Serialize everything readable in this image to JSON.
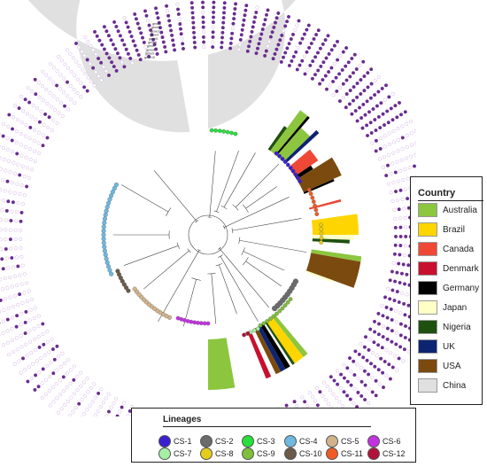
{
  "country_legend": {
    "title": "Country",
    "items": [
      {
        "label": "Australia",
        "color": "#8cc63f"
      },
      {
        "label": "Brazil",
        "color": "#ffd500"
      },
      {
        "label": "Canada",
        "color": "#ef4836"
      },
      {
        "label": "Denmark",
        "color": "#c8102e"
      },
      {
        "label": "Germany",
        "color": "#000000"
      },
      {
        "label": "Japan",
        "color": "#ffffc8"
      },
      {
        "label": "Nigeria",
        "color": "#1e5010"
      },
      {
        "label": "UK",
        "color": "#0d2472"
      },
      {
        "label": "USA",
        "color": "#7b4a0e"
      },
      {
        "label": "China",
        "color": "#e0e0e0"
      }
    ]
  },
  "lineage_legend": {
    "title": "Lineages",
    "items": [
      {
        "label": "CS-1",
        "color": "#3a1fd1"
      },
      {
        "label": "CS-2",
        "color": "#6b6b6b"
      },
      {
        "label": "CS-3",
        "color": "#27e03a"
      },
      {
        "label": "CS-4",
        "color": "#6fb8e0"
      },
      {
        "label": "CS-5",
        "color": "#d2b48c"
      },
      {
        "label": "CS-6",
        "color": "#c233e0"
      },
      {
        "label": "CS-7",
        "color": "#a6f0a6"
      },
      {
        "label": "CS-8",
        "color": "#e6cc1a"
      },
      {
        "label": "CS-9",
        "color": "#7fbf3a"
      },
      {
        "label": "CS-10",
        "color": "#6b5a4a"
      },
      {
        "label": "CS-11",
        "color": "#f05a24"
      },
      {
        "label": "CS-12",
        "color": "#b0123a"
      }
    ]
  },
  "ring_header_labels": [
    "gene1",
    "gene2",
    "gene3",
    "gene4",
    "gene5",
    "gene6",
    "gene7",
    "gene8",
    "gene9",
    "gene10"
  ]
}
